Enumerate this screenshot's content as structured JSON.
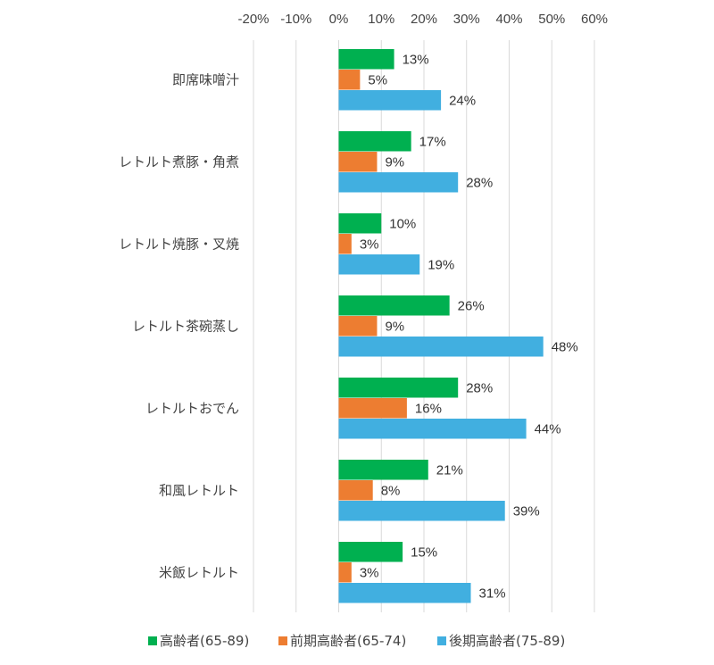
{
  "chart_data": {
    "type": "bar",
    "orientation": "horizontal",
    "title": "",
    "xlabel": "",
    "ylabel": "",
    "xlim": [
      -20,
      60
    ],
    "x_ticks": [
      "-20%",
      "-10%",
      "0%",
      "10%",
      "20%",
      "30%",
      "40%",
      "50%",
      "60%"
    ],
    "x_tick_values": [
      -20,
      -10,
      0,
      10,
      20,
      30,
      40,
      50,
      60
    ],
    "x_axis_position": "top",
    "grid": true,
    "legend_position": "bottom",
    "value_suffix": "%",
    "categories": [
      "即席味噌汁",
      "レトルト煮豚・角煮",
      "レトルト焼豚・叉焼",
      "レトルト茶碗蒸し",
      "レトルトおでん",
      "和風レトルト",
      "米飯レトルト"
    ],
    "series": [
      {
        "name": "高齢者(65-89)",
        "color": "#00b050",
        "values": [
          13,
          17,
          10,
          26,
          28,
          21,
          15
        ]
      },
      {
        "name": "前期高齢者(65-74)",
        "color": "#ed7d31",
        "values": [
          5,
          9,
          3,
          9,
          16,
          8,
          3
        ]
      },
      {
        "name": "後期高齢者(75-89)",
        "color": "#41afe0",
        "values": [
          24,
          28,
          19,
          48,
          44,
          39,
          31
        ]
      }
    ]
  }
}
